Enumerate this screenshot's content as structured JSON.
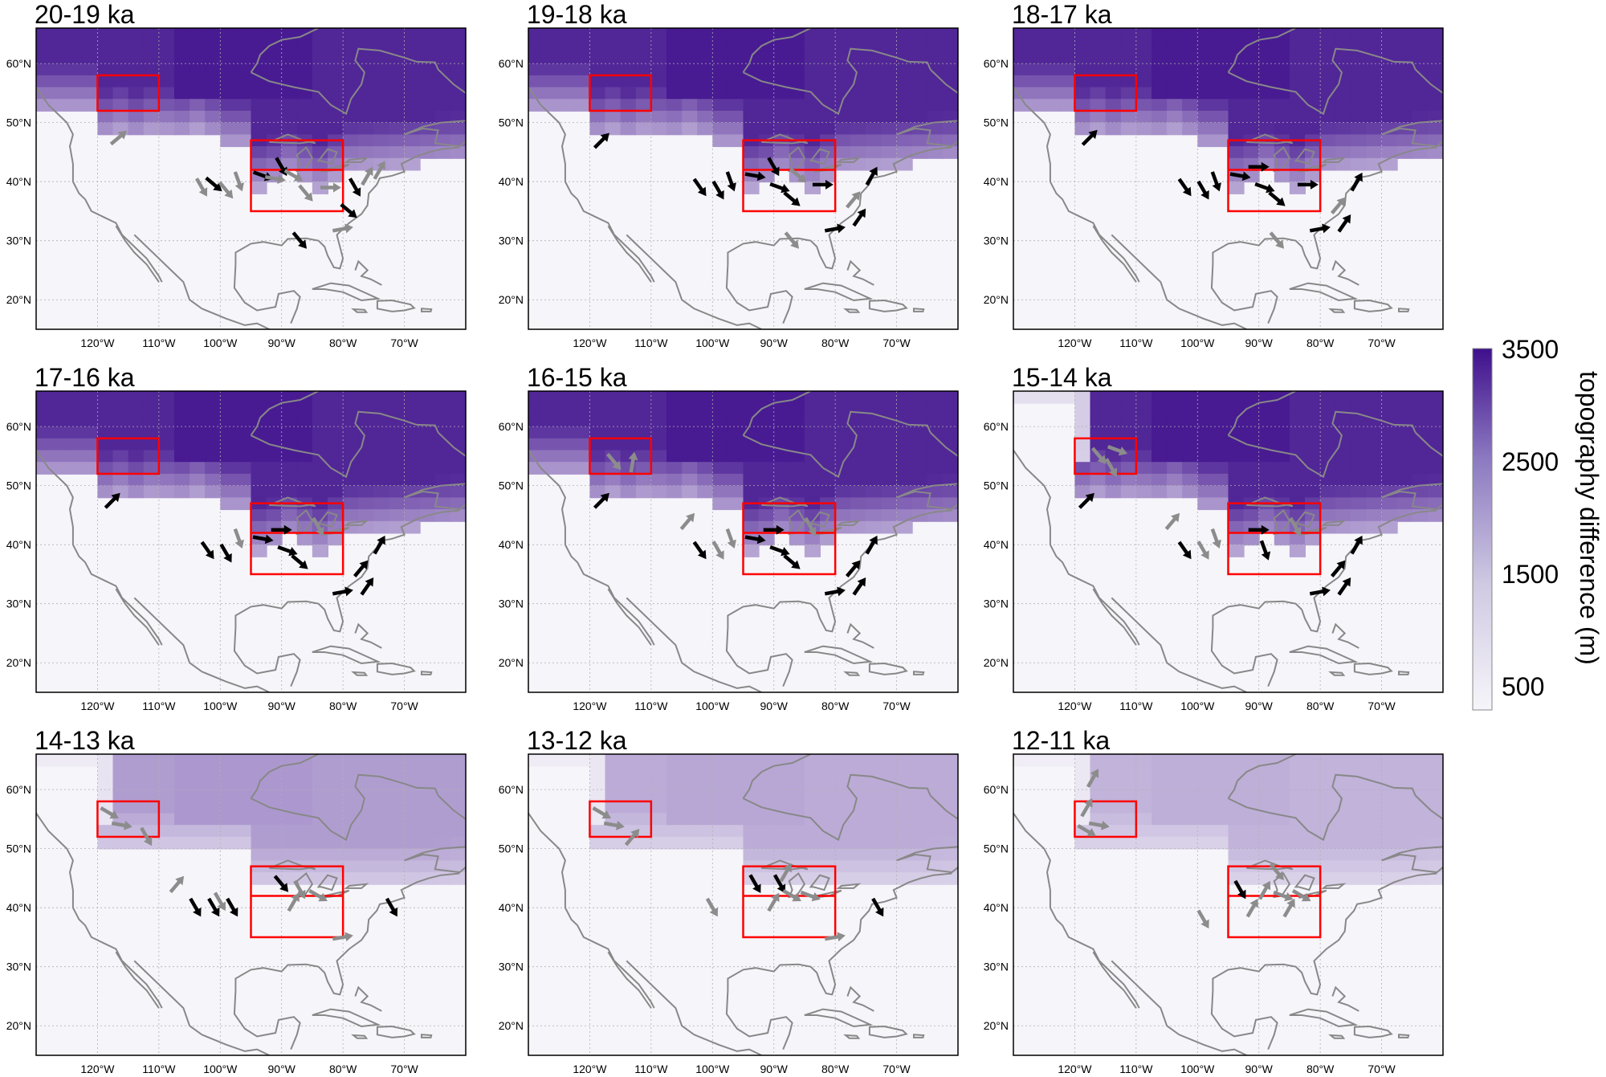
{
  "figure": {
    "panels": [
      {
        "title": "20-19 ka",
        "ice": 1.0,
        "ice_west_gap": false,
        "south_box_split": true,
        "west_box_arrows": [],
        "arrows": [
          {
            "lon": -116.5,
            "lat": 47.5,
            "dir": 40,
            "c": "g"
          },
          {
            "lon": -103,
            "lat": 39,
            "dir": -60,
            "c": "g"
          },
          {
            "lon": -101,
            "lat": 39.5,
            "dir": -40,
            "c": "k"
          },
          {
            "lon": -99,
            "lat": 38.5,
            "dir": -50,
            "c": "g"
          },
          {
            "lon": -97,
            "lat": 40,
            "dir": -70,
            "c": "g"
          },
          {
            "lon": -93,
            "lat": 41,
            "dir": -20,
            "c": "k"
          },
          {
            "lon": -90,
            "lat": 42.5,
            "dir": -60,
            "c": "k"
          },
          {
            "lon": -88,
            "lat": 41,
            "dir": -30,
            "c": "g"
          },
          {
            "lon": -86,
            "lat": 38,
            "dir": -50,
            "c": "g"
          },
          {
            "lon": -82,
            "lat": 39,
            "dir": 0,
            "c": "g"
          },
          {
            "lon": -78,
            "lat": 39,
            "dir": -60,
            "c": "k"
          },
          {
            "lon": -76,
            "lat": 41,
            "dir": 60,
            "c": "g"
          },
          {
            "lon": -74,
            "lat": 42,
            "dir": 60,
            "c": "g"
          },
          {
            "lon": -79,
            "lat": 35,
            "dir": -40,
            "c": "k"
          },
          {
            "lon": -80,
            "lat": 32,
            "dir": 10,
            "c": "g"
          },
          {
            "lon": -87,
            "lat": 30,
            "dir": -50,
            "c": "k"
          },
          {
            "lon": -91,
            "lat": 40.5,
            "dir": -10,
            "c": "g"
          }
        ]
      },
      {
        "title": "19-18 ka",
        "ice": 1.0,
        "ice_west_gap": false,
        "south_box_split": true,
        "west_box_arrows": [],
        "arrows": [
          {
            "lon": -118,
            "lat": 47,
            "dir": 45,
            "c": "k"
          },
          {
            "lon": -102,
            "lat": 39,
            "dir": -55,
            "c": "k"
          },
          {
            "lon": -99,
            "lat": 38.5,
            "dir": -60,
            "c": "k"
          },
          {
            "lon": -97,
            "lat": 40,
            "dir": -70,
            "c": "k"
          },
          {
            "lon": -93,
            "lat": 41,
            "dir": -10,
            "c": "k"
          },
          {
            "lon": -90,
            "lat": 42.5,
            "dir": -60,
            "c": "k"
          },
          {
            "lon": -89,
            "lat": 39,
            "dir": -20,
            "c": "k"
          },
          {
            "lon": -87,
            "lat": 37,
            "dir": -40,
            "c": "k"
          },
          {
            "lon": -82,
            "lat": 39.5,
            "dir": 0,
            "c": "k"
          },
          {
            "lon": -77,
            "lat": 37,
            "dir": 50,
            "c": "g"
          },
          {
            "lon": -76,
            "lat": 34,
            "dir": 55,
            "c": "k"
          },
          {
            "lon": -74,
            "lat": 41,
            "dir": 60,
            "c": "k"
          },
          {
            "lon": -80,
            "lat": 32,
            "dir": 10,
            "c": "k"
          },
          {
            "lon": -87,
            "lat": 30,
            "dir": -50,
            "c": "g"
          },
          {
            "lon": -86,
            "lat": 41,
            "dir": -40,
            "c": "g"
          }
        ]
      },
      {
        "title": "18-17 ka",
        "ice": 1.0,
        "ice_west_gap": false,
        "south_box_split": true,
        "west_box_arrows": [],
        "arrows": [
          {
            "lon": -117.5,
            "lat": 47.5,
            "dir": 45,
            "c": "k"
          },
          {
            "lon": -102,
            "lat": 39,
            "dir": -55,
            "c": "k"
          },
          {
            "lon": -99,
            "lat": 38.5,
            "dir": -60,
            "c": "k"
          },
          {
            "lon": -97,
            "lat": 40,
            "dir": -70,
            "c": "k"
          },
          {
            "lon": -93,
            "lat": 41,
            "dir": -10,
            "c": "k"
          },
          {
            "lon": -90,
            "lat": 42.5,
            "dir": 0,
            "c": "k"
          },
          {
            "lon": -89,
            "lat": 39,
            "dir": -20,
            "c": "k"
          },
          {
            "lon": -87,
            "lat": 37,
            "dir": -40,
            "c": "k"
          },
          {
            "lon": -82,
            "lat": 39.5,
            "dir": 0,
            "c": "k"
          },
          {
            "lon": -77,
            "lat": 36,
            "dir": 50,
            "c": "g"
          },
          {
            "lon": -76,
            "lat": 33,
            "dir": 55,
            "c": "k"
          },
          {
            "lon": -74,
            "lat": 40,
            "dir": 60,
            "c": "k"
          },
          {
            "lon": -80,
            "lat": 32,
            "dir": 10,
            "c": "k"
          },
          {
            "lon": -87,
            "lat": 30,
            "dir": -50,
            "c": "g"
          }
        ]
      },
      {
        "title": "17-16 ka",
        "ice": 1.0,
        "ice_west_gap": false,
        "south_box_split": true,
        "west_box_arrows": [],
        "arrows": [
          {
            "lon": -117.5,
            "lat": 47.5,
            "dir": 45,
            "c": "k"
          },
          {
            "lon": -102,
            "lat": 39,
            "dir": -55,
            "c": "k"
          },
          {
            "lon": -99,
            "lat": 38.5,
            "dir": -60,
            "c": "k"
          },
          {
            "lon": -97,
            "lat": 41,
            "dir": -70,
            "c": "g"
          },
          {
            "lon": -93,
            "lat": 41,
            "dir": -10,
            "c": "k"
          },
          {
            "lon": -90,
            "lat": 42.5,
            "dir": 0,
            "c": "k"
          },
          {
            "lon": -89,
            "lat": 39,
            "dir": -20,
            "c": "k"
          },
          {
            "lon": -87,
            "lat": 37,
            "dir": -40,
            "c": "k"
          },
          {
            "lon": -84,
            "lat": 43,
            "dir": -60,
            "c": "g"
          },
          {
            "lon": -77,
            "lat": 36,
            "dir": 50,
            "c": "k"
          },
          {
            "lon": -76,
            "lat": 33,
            "dir": 55,
            "c": "k"
          },
          {
            "lon": -74,
            "lat": 40,
            "dir": 60,
            "c": "k"
          },
          {
            "lon": -80,
            "lat": 32,
            "dir": 10,
            "c": "k"
          }
        ]
      },
      {
        "title": "16-15 ka",
        "ice": 1.0,
        "ice_west_gap": false,
        "south_box_split": true,
        "west_box_arrows": [
          {
            "lon": -116,
            "lat": 54,
            "dir": -50,
            "c": "g"
          },
          {
            "lon": -113,
            "lat": 54,
            "dir": 80,
            "c": "g"
          }
        ],
        "arrows": [
          {
            "lon": -118,
            "lat": 47.5,
            "dir": 45,
            "c": "k"
          },
          {
            "lon": -104,
            "lat": 44,
            "dir": 50,
            "c": "g"
          },
          {
            "lon": -102,
            "lat": 39,
            "dir": -55,
            "c": "k"
          },
          {
            "lon": -99,
            "lat": 39,
            "dir": -60,
            "c": "g"
          },
          {
            "lon": -97,
            "lat": 41,
            "dir": -70,
            "c": "g"
          },
          {
            "lon": -93,
            "lat": 41,
            "dir": -10,
            "c": "k"
          },
          {
            "lon": -90,
            "lat": 42.5,
            "dir": 0,
            "c": "k"
          },
          {
            "lon": -89,
            "lat": 39,
            "dir": -20,
            "c": "k"
          },
          {
            "lon": -87,
            "lat": 37,
            "dir": -40,
            "c": "k"
          },
          {
            "lon": -84,
            "lat": 43,
            "dir": -60,
            "c": "g"
          },
          {
            "lon": -77,
            "lat": 36,
            "dir": 50,
            "c": "k"
          },
          {
            "lon": -76,
            "lat": 33,
            "dir": 55,
            "c": "k"
          },
          {
            "lon": -74,
            "lat": 40,
            "dir": 60,
            "c": "k"
          },
          {
            "lon": -80,
            "lat": 32,
            "dir": 10,
            "c": "k"
          }
        ]
      },
      {
        "title": "15-14 ka",
        "ice": 1.0,
        "ice_west_gap": true,
        "south_box_split": true,
        "west_box_arrows": [
          {
            "lon": -116,
            "lat": 55,
            "dir": -50,
            "c": "g"
          },
          {
            "lon": -114,
            "lat": 53,
            "dir": -60,
            "c": "g"
          },
          {
            "lon": -113,
            "lat": 56,
            "dir": -20,
            "c": "g"
          }
        ],
        "arrows": [
          {
            "lon": -118,
            "lat": 47.5,
            "dir": 45,
            "c": "k"
          },
          {
            "lon": -104,
            "lat": 44,
            "dir": 50,
            "c": "g"
          },
          {
            "lon": -102,
            "lat": 39,
            "dir": -55,
            "c": "k"
          },
          {
            "lon": -99,
            "lat": 39,
            "dir": -60,
            "c": "g"
          },
          {
            "lon": -97,
            "lat": 41,
            "dir": -70,
            "c": "g"
          },
          {
            "lon": -90,
            "lat": 42.5,
            "dir": 0,
            "c": "k"
          },
          {
            "lon": -89,
            "lat": 39,
            "dir": -70,
            "c": "k"
          },
          {
            "lon": -84,
            "lat": 43,
            "dir": -60,
            "c": "g"
          },
          {
            "lon": -77,
            "lat": 36,
            "dir": 50,
            "c": "k"
          },
          {
            "lon": -76,
            "lat": 33,
            "dir": 55,
            "c": "k"
          },
          {
            "lon": -74,
            "lat": 40,
            "dir": 60,
            "c": "k"
          },
          {
            "lon": -80,
            "lat": 32,
            "dir": 10,
            "c": "k"
          }
        ]
      },
      {
        "title": "14-13 ka",
        "ice": 0.6,
        "ice_west_gap": true,
        "south_box_split": true,
        "west_box_arrows": [
          {
            "lon": -118,
            "lat": 56,
            "dir": -30,
            "c": "g"
          },
          {
            "lon": -116,
            "lat": 54,
            "dir": -10,
            "c": "g"
          },
          {
            "lon": -112,
            "lat": 52,
            "dir": -60,
            "c": "g"
          }
        ],
        "arrows": [
          {
            "lon": -107,
            "lat": 44,
            "dir": 50,
            "c": "g"
          },
          {
            "lon": -104,
            "lat": 40,
            "dir": -60,
            "c": "k"
          },
          {
            "lon": -101,
            "lat": 40,
            "dir": -60,
            "c": "k"
          },
          {
            "lon": -98,
            "lat": 40,
            "dir": -60,
            "c": "k"
          },
          {
            "lon": -100,
            "lat": 41,
            "dir": -60,
            "c": "g"
          },
          {
            "lon": -90,
            "lat": 44,
            "dir": -50,
            "c": "k"
          },
          {
            "lon": -87,
            "lat": 43,
            "dir": -60,
            "c": "g"
          },
          {
            "lon": -84,
            "lat": 42,
            "dir": -30,
            "c": "g"
          },
          {
            "lon": -88,
            "lat": 41,
            "dir": 60,
            "c": "g"
          },
          {
            "lon": -72,
            "lat": 40,
            "dir": -60,
            "c": "k"
          },
          {
            "lon": -80,
            "lat": 35,
            "dir": 10,
            "c": "g"
          }
        ]
      },
      {
        "title": "13-12 ka",
        "ice": 0.5,
        "ice_west_gap": true,
        "south_box_split": true,
        "west_box_arrows": [
          {
            "lon": -118,
            "lat": 56,
            "dir": -30,
            "c": "g"
          },
          {
            "lon": -116,
            "lat": 54,
            "dir": -10,
            "c": "g"
          },
          {
            "lon": -113,
            "lat": 52,
            "dir": 50,
            "c": "g"
          }
        ],
        "arrows": [
          {
            "lon": -100,
            "lat": 40,
            "dir": -60,
            "c": "g"
          },
          {
            "lon": -93,
            "lat": 44,
            "dir": -60,
            "c": "k"
          },
          {
            "lon": -89,
            "lat": 44,
            "dir": -60,
            "c": "k"
          },
          {
            "lon": -87,
            "lat": 42,
            "dir": -30,
            "c": "g"
          },
          {
            "lon": -88,
            "lat": 46,
            "dir": 60,
            "c": "g"
          },
          {
            "lon": -84,
            "lat": 42,
            "dir": -20,
            "c": "g"
          },
          {
            "lon": -90,
            "lat": 41,
            "dir": 60,
            "c": "g"
          },
          {
            "lon": -73,
            "lat": 40,
            "dir": -60,
            "c": "k"
          },
          {
            "lon": -80,
            "lat": 35,
            "dir": 10,
            "c": "g"
          }
        ]
      },
      {
        "title": "12-11 ka",
        "ice": 0.45,
        "ice_west_gap": true,
        "south_box_split": true,
        "west_box_arrows": [
          {
            "lon": -117,
            "lat": 62,
            "dir": 60,
            "c": "g"
          },
          {
            "lon": -118,
            "lat": 57,
            "dir": 60,
            "c": "g"
          },
          {
            "lon": -116,
            "lat": 54,
            "dir": -10,
            "c": "g"
          },
          {
            "lon": -118,
            "lat": 53,
            "dir": -30,
            "c": "g"
          }
        ],
        "arrows": [
          {
            "lon": -99,
            "lat": 38,
            "dir": -60,
            "c": "g"
          },
          {
            "lon": -93,
            "lat": 43,
            "dir": -60,
            "c": "k"
          },
          {
            "lon": -89,
            "lat": 43,
            "dir": 60,
            "c": "g"
          },
          {
            "lon": -87,
            "lat": 46,
            "dir": -50,
            "c": "g"
          },
          {
            "lon": -86,
            "lat": 42,
            "dir": -20,
            "c": "g"
          },
          {
            "lon": -83,
            "lat": 42,
            "dir": -30,
            "c": "g"
          },
          {
            "lon": -91,
            "lat": 40,
            "dir": 60,
            "c": "g"
          },
          {
            "lon": -85,
            "lat": 40,
            "dir": 60,
            "c": "g"
          }
        ]
      }
    ],
    "lat_ticks": [
      {
        "value": 60,
        "label": "60°N"
      },
      {
        "value": 50,
        "label": "50°N"
      },
      {
        "value": 40,
        "label": "40°N"
      },
      {
        "value": 30,
        "label": "30°N"
      },
      {
        "value": 20,
        "label": "20°N"
      }
    ],
    "lon_ticks": [
      {
        "value": -120,
        "label": "120°W"
      },
      {
        "value": -110,
        "label": "110°W"
      },
      {
        "value": -100,
        "label": "100°W"
      },
      {
        "value": -90,
        "label": "90°W"
      },
      {
        "value": -80,
        "label": "80°W"
      },
      {
        "value": -70,
        "label": "70°W"
      }
    ],
    "extent": {
      "lon": [
        -130,
        -60
      ],
      "lat": [
        15,
        66
      ]
    },
    "boxes": {
      "west": {
        "lon": [
          -120,
          -110
        ],
        "lat": [
          52,
          58
        ]
      },
      "south": {
        "lon": [
          -95,
          -80
        ],
        "lat": [
          35,
          47
        ],
        "split_lat": 42
      }
    },
    "colorbar": {
      "title": "topography difference (m)",
      "labels": [
        "3500",
        "2500",
        "1500",
        "500"
      ],
      "min_color": "#f6f5fa",
      "max_color": "#3f0f8c"
    },
    "colors": {
      "box": "#ff0000",
      "arrow_black": "#000000",
      "arrow_gray": "#8c8c8c",
      "coast": "#888888",
      "grid": "#b0b0b0"
    }
  }
}
